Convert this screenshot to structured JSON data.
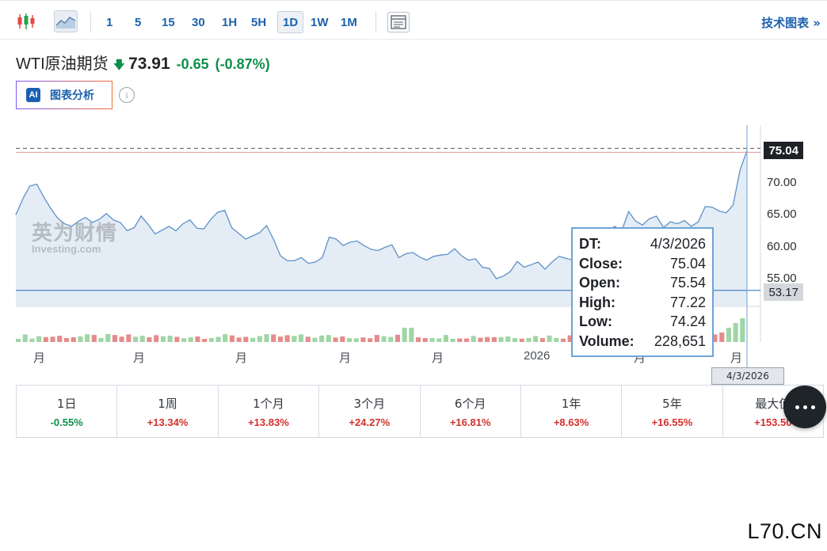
{
  "toolbar": {
    "timeframes": [
      "1",
      "5",
      "15",
      "30",
      "1H",
      "5H",
      "1D",
      "1W",
      "1M"
    ],
    "active_timeframe": "1D",
    "tech_chart_link": "技术图表 »"
  },
  "instrument": {
    "name": "WTI原油期货",
    "price": "73.91",
    "change": "-0.65",
    "change_pct": "(-0.87%)"
  },
  "ai_button": {
    "badge": "AI",
    "label": "图表分析"
  },
  "chart": {
    "watermark_cn": "英为财情",
    "watermark_en": "Investing.com",
    "last_price_label": "75.04",
    "crosshair_price_label": "53.17",
    "y_ticks": [
      "70.00",
      "65.00",
      "60.00",
      "55.00"
    ],
    "x_ticks": [
      "月",
      "月",
      "月",
      "月",
      "月",
      "2026",
      "月",
      "月"
    ],
    "crosshair_date": "4/3/2026",
    "tooltip": [
      {
        "k": "DT:",
        "v": "4/3/2026"
      },
      {
        "k": "Close:",
        "v": "75.04"
      },
      {
        "k": "Open:",
        "v": "75.54"
      },
      {
        "k": "High:",
        "v": "77.22"
      },
      {
        "k": "Low:",
        "v": "74.24"
      },
      {
        "k": "Volume:",
        "v": "228,651"
      }
    ]
  },
  "chart_data": {
    "type": "area",
    "y_range": [
      53,
      75.5
    ],
    "close": [
      65.0,
      67.5,
      69.5,
      69.8,
      67.8,
      66.0,
      64.5,
      63.6,
      63.2,
      64.0,
      64.6,
      63.8,
      64.3,
      65.2,
      64.2,
      63.8,
      62.5,
      63.0,
      64.8,
      63.5,
      62.0,
      62.6,
      63.2,
      62.5,
      63.6,
      64.2,
      62.9,
      62.8,
      64.3,
      65.4,
      65.7,
      63.0,
      62.1,
      61.2,
      61.7,
      62.2,
      63.3,
      61.2,
      58.6,
      57.8,
      57.8,
      58.3,
      57.4,
      57.6,
      58.3,
      61.5,
      61.2,
      60.2,
      60.7,
      60.9,
      60.2,
      59.6,
      59.4,
      59.9,
      60.3,
      58.3,
      58.9,
      59.1,
      58.4,
      57.9,
      58.5,
      58.7,
      58.8,
      59.7,
      58.6,
      57.9,
      58.1,
      56.8,
      56.6,
      55.0,
      55.4,
      56.1,
      57.7,
      56.8,
      57.2,
      57.6,
      56.5,
      57.6,
      58.5,
      58.2,
      57.9,
      58.4,
      58.2,
      59.4,
      60.0,
      62.5,
      63.2,
      62.5,
      65.5,
      64.0,
      63.4,
      64.4,
      64.8,
      63.0,
      63.9,
      63.6,
      64.1,
      63.2,
      63.9,
      66.3,
      66.2,
      65.6,
      65.3,
      66.5,
      72.0,
      75.04
    ],
    "volume_bars": 106
  },
  "performance": [
    {
      "label": "1日",
      "value": "-0.55%",
      "dir": "neg"
    },
    {
      "label": "1周",
      "value": "+13.34%",
      "dir": "pos"
    },
    {
      "label": "1个月",
      "value": "+13.83%",
      "dir": "pos"
    },
    {
      "label": "3个月",
      "value": "+24.27%",
      "dir": "pos"
    },
    {
      "label": "6个月",
      "value": "+16.81%",
      "dir": "pos"
    },
    {
      "label": "1年",
      "value": "+8.63%",
      "dir": "pos"
    },
    {
      "label": "5年",
      "value": "+16.55%",
      "dir": "pos"
    },
    {
      "label": "最大值",
      "value": "+153.50",
      "dir": "pos"
    }
  ],
  "site_mark": "L70.CN"
}
